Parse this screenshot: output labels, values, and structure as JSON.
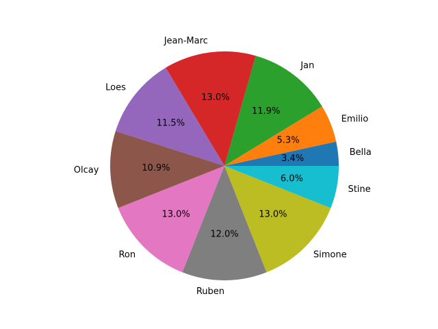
{
  "chart_data": {
    "type": "pie",
    "title": "",
    "start_angle_deg": 0,
    "direction": "counterclockwise",
    "slices": [
      {
        "label": "Bella",
        "value": 3.4,
        "pct_label": "3.4%",
        "color": "#1f77b4"
      },
      {
        "label": "Emilio",
        "value": 5.3,
        "pct_label": "5.3%",
        "color": "#ff7f0e"
      },
      {
        "label": "Jan",
        "value": 11.9,
        "pct_label": "11.9%",
        "color": "#2ca02c"
      },
      {
        "label": "Jean-Marc",
        "value": 13.0,
        "pct_label": "13.0%",
        "color": "#d62728"
      },
      {
        "label": "Loes",
        "value": 11.5,
        "pct_label": "11.5%",
        "color": "#9467bd"
      },
      {
        "label": "Olcay",
        "value": 10.9,
        "pct_label": "10.9%",
        "color": "#8c564b"
      },
      {
        "label": "Ron",
        "value": 13.0,
        "pct_label": "13.0%",
        "color": "#e377c2"
      },
      {
        "label": "Ruben",
        "value": 12.0,
        "pct_label": "12.0%",
        "color": "#7f7f7f"
      },
      {
        "label": "Simone",
        "value": 13.0,
        "pct_label": "13.0%",
        "color": "#bcbd22"
      },
      {
        "label": "Stine",
        "value": 6.0,
        "pct_label": "6.0%",
        "color": "#17becf"
      }
    ]
  }
}
